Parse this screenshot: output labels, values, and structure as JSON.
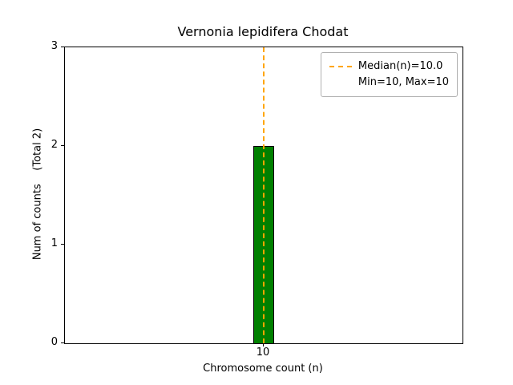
{
  "chart_data": {
    "type": "bar",
    "title": "Vernonia lepidifera Chodat",
    "xlabel": "Chromosome count (n)",
    "ylabel": "Num of counts    (Total 2)",
    "categories": [
      "10"
    ],
    "values": [
      2
    ],
    "ylim": [
      0,
      3
    ],
    "yticks": [
      0,
      1,
      2,
      3
    ],
    "grid": false,
    "bar_color": "#008000",
    "bar_edge_color": "#000000",
    "median_line": {
      "x": 10,
      "color": "#ffa500",
      "style": "dashed"
    },
    "legend": {
      "position": "upper-right",
      "entries": [
        {
          "label": "Median(n)=10.0",
          "swatch": "orange-dashed-line"
        },
        {
          "label": "Min=10, Max=10",
          "swatch": "none"
        }
      ]
    }
  }
}
